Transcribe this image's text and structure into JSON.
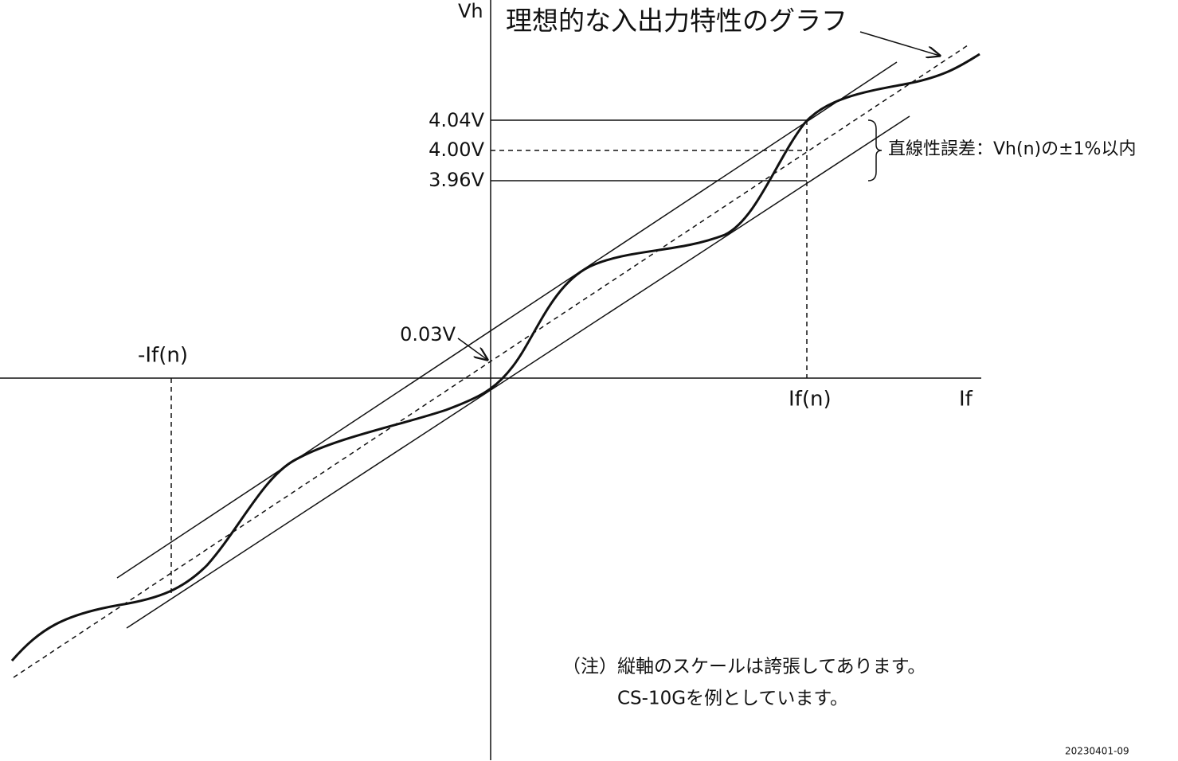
{
  "title": "理想的な入出力特性のグラフ",
  "axes": {
    "y": "Vh",
    "x": "If"
  },
  "levels": {
    "upper": "4.04V",
    "ideal": "4.00V",
    "lower": "3.96V",
    "offset": "0.03V"
  },
  "x_marks": {
    "negative": "-If(n)",
    "positive": "If(n)"
  },
  "tolerance": "直線性誤差：Vh(n)の±1%以内",
  "note": {
    "line1": "（注）縦軸のスケールは誇張してあります。",
    "line2": "CS-10Gを例としています。"
  },
  "code": "20230401-09"
}
